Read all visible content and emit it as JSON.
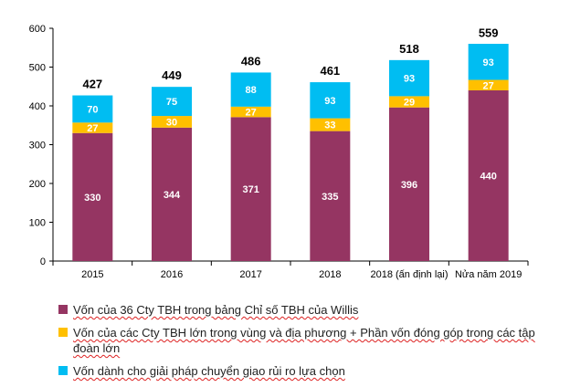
{
  "chart_data": {
    "type": "bar",
    "stacked": true,
    "categories": [
      "2015",
      "2016",
      "2017",
      "2018",
      "2018 (ấn định lại)",
      "Nửa năm 2019"
    ],
    "series": [
      {
        "name": "Vốn của 36 Cty TBH trong bảng Chỉ số TBH của Willis",
        "color": "#953562",
        "values": [
          330,
          344,
          371,
          335,
          396,
          440
        ]
      },
      {
        "name": "Vốn của các Cty TBH lớn trong vùng và địa phương + Phần vốn đóng góp trong các tập đoàn lớn",
        "color": "#ffc000",
        "values": [
          27,
          30,
          27,
          33,
          29,
          27
        ]
      },
      {
        "name": "Vốn dành cho giải pháp chuyển giao rủi ro lựa chọn",
        "color": "#00bdf2",
        "values": [
          70,
          75,
          88,
          93,
          93,
          93
        ]
      }
    ],
    "totals": [
      427,
      449,
      486,
      461,
      518,
      559
    ],
    "ylim": [
      0,
      600
    ],
    "yticks": [
      0,
      100,
      200,
      300,
      400,
      500,
      600
    ],
    "grid": false,
    "legend_position": "bottom",
    "title": "",
    "xlabel": "",
    "ylabel": ""
  }
}
